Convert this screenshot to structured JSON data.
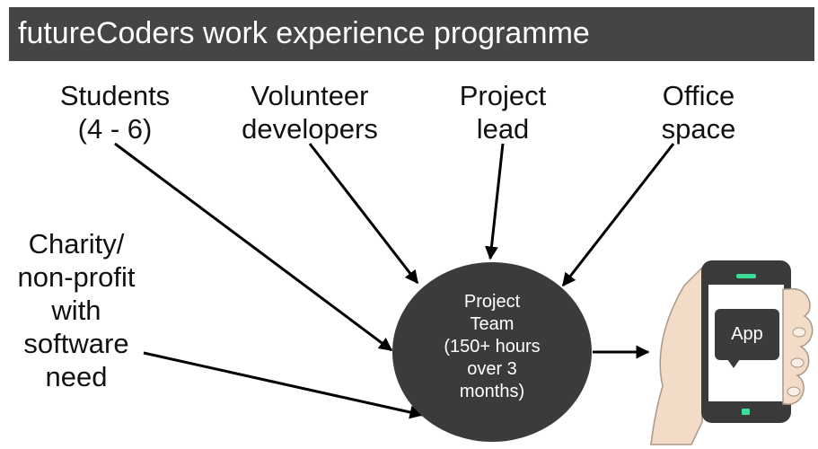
{
  "title": "futureCoders work experience programme",
  "inputs": {
    "students": [
      "Students",
      "(4 - 6)"
    ],
    "volunteers": [
      "Volunteer",
      "developers"
    ],
    "project_lead": [
      "Project",
      "lead"
    ],
    "office": [
      "Office",
      "space"
    ],
    "charity": [
      "Charity/",
      "non-profit",
      "with",
      "software",
      "need"
    ]
  },
  "team": [
    "Project",
    "Team",
    "(150+ hours",
    "over 3",
    "months)"
  ],
  "app_label": "App",
  "colors": {
    "title_bar": "#454545",
    "team_circle": "#3b3b3b",
    "title_text": "#ffffff",
    "arrow": "#000000",
    "phone_body": "#3a3a3a",
    "hand": "#f2dcc8",
    "screen_accent": "#3ddc97"
  }
}
